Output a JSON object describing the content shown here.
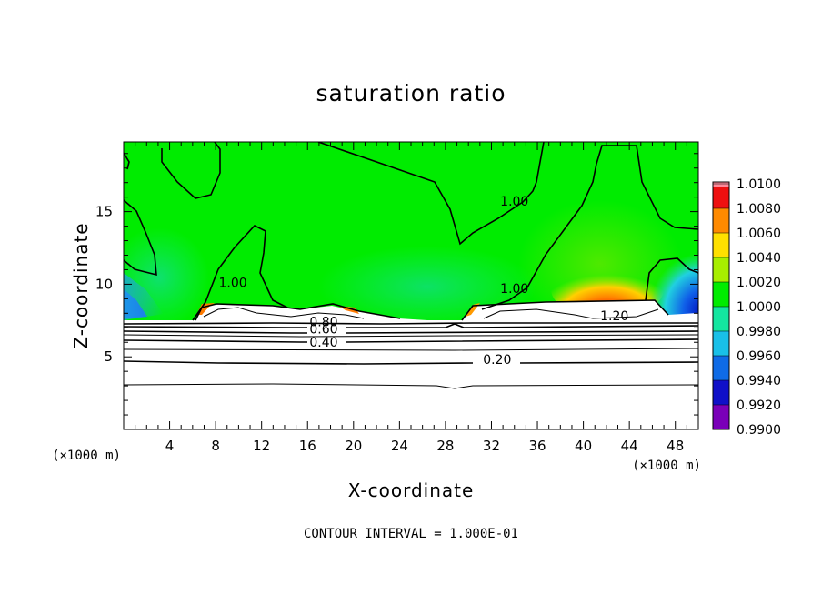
{
  "chart_data": {
    "type": "heatmap",
    "title": "saturation ratio",
    "xlabel": "X-coordinate",
    "ylabel": "Z-coordinate",
    "x_unit": "(×1000 m)",
    "y_unit": "(×1000 m)",
    "xlim": [
      0,
      50
    ],
    "ylim": [
      0,
      19.8
    ],
    "x_ticks": [
      4,
      8,
      12,
      16,
      20,
      24,
      28,
      32,
      36,
      40,
      44,
      48
    ],
    "y_ticks": [
      5,
      10,
      15
    ],
    "contour_interval_note": "CONTOUR INTERVAL = 1.000E-01",
    "colorbar": {
      "levels": [
        "0.9900",
        "0.9920",
        "0.9940",
        "0.9960",
        "0.9980",
        "1.0000",
        "1.0020",
        "1.0040",
        "1.0060",
        "1.0080",
        "1.0100"
      ],
      "colors": [
        "#7a00b8",
        "#1010c8",
        "#0f6be6",
        "#19c0e8",
        "#14e6a0",
        "#00ec00",
        "#a8ee00",
        "#ffe000",
        "#ff8a00",
        "#ee1010",
        "#ff8a9a"
      ]
    },
    "contour_labels": [
      {
        "text": "1.00",
        "x": 34,
        "y": 15.6
      },
      {
        "text": "1.00",
        "x": 9.5,
        "y": 10.0
      },
      {
        "text": "1.00",
        "x": 34,
        "y": 9.6
      },
      {
        "text": "1.20",
        "x": 42.7,
        "y": 7.7
      },
      {
        "text": "0.80",
        "x": 17.4,
        "y": 7.3
      },
      {
        "text": "0.60",
        "x": 17.4,
        "y": 6.8
      },
      {
        "text": "0.40",
        "x": 17.4,
        "y": 5.9
      },
      {
        "text": "0.20",
        "x": 32.5,
        "y": 4.7
      }
    ]
  }
}
